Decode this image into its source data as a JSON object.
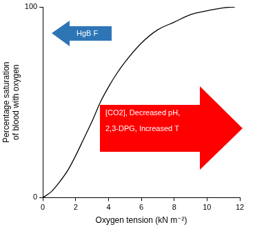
{
  "chart_data": {
    "type": "line",
    "xlabel": "Oxygen tension (kN m⁻²)",
    "ylabel": [
      "Percentage saturation",
      "of blood with oxygen"
    ],
    "x": [
      0,
      0.5,
      1,
      1.5,
      2,
      2.5,
      3,
      3.5,
      4,
      4.5,
      5,
      6,
      7,
      8,
      9,
      10,
      11,
      11.7
    ],
    "values": [
      0,
      3,
      8,
      14,
      22,
      31,
      40,
      50,
      58,
      65,
      71,
      81,
      88,
      92,
      96,
      98,
      99.5,
      100
    ],
    "color": "#000000",
    "marker": "none",
    "xlim": [
      0,
      12
    ],
    "xticks": [
      0,
      2,
      4,
      6,
      8,
      10,
      12
    ],
    "ylim": [
      0,
      100
    ],
    "yticks": [
      0,
      100
    ],
    "grid": false,
    "annotations": [
      {
        "text": "HgB F",
        "color": "#2e75b6"
      },
      {
        "text": [
          "[CO2], Decreased pH,",
          "2,3-DPG, Increased T"
        ],
        "color": "#ff0000"
      }
    ]
  }
}
